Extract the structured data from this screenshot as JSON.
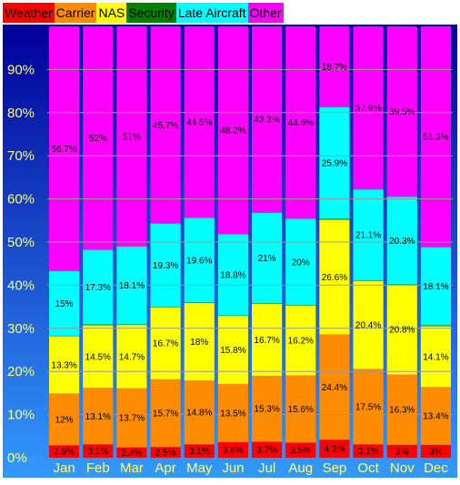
{
  "chart_data": {
    "type": "bar",
    "stacked": true,
    "normalized": true,
    "categories": [
      "Jan",
      "Feb",
      "Mar",
      "Apr",
      "May",
      "Jun",
      "Jul",
      "Aug",
      "Sep",
      "Oct",
      "Nov",
      "Dec"
    ],
    "y_tick_labels": [
      "0%",
      "10%",
      "20%",
      "30%",
      "40%",
      "50%",
      "60%",
      "70%",
      "80%",
      "90%"
    ],
    "ylim": [
      0,
      100
    ],
    "grid": true,
    "legend_position": "top-left",
    "series": [
      {
        "name": "Weather",
        "color": "#ff0000",
        "values": [
          2.9,
          3.1,
          2.4,
          2.5,
          3.1,
          3.6,
          3.7,
          3.5,
          4.2,
          3.1,
          3,
          3
        ],
        "labels": [
          "2.9%",
          "3.1%",
          "2.4%",
          "2.5%",
          "3.1%",
          "3.6%",
          "3.7%",
          "3.5%",
          "4.2%",
          "3.1%",
          "3%",
          "3%"
        ]
      },
      {
        "name": "Carrier",
        "color": "#ff8c00",
        "values": [
          12,
          13.1,
          13.7,
          15.7,
          14.8,
          13.5,
          15.3,
          15.6,
          24.4,
          17.5,
          16.3,
          13.4
        ],
        "labels": [
          "12%",
          "13.1%",
          "13.7%",
          "15.7%",
          "14.8%",
          "13.5%",
          "15.3%",
          "15.6%",
          "24.4%",
          "17.5%",
          "16.3%",
          "13.4%"
        ]
      },
      {
        "name": "NAS",
        "color": "#ffff00",
        "values": [
          13.3,
          14.5,
          14.7,
          16.7,
          18,
          15.8,
          16.7,
          16.2,
          26.6,
          20.4,
          20.8,
          14.1
        ],
        "labels": [
          "13.3%",
          "14.5%",
          "14.7%",
          "16.7%",
          "18%",
          "15.8%",
          "16.7%",
          "16.2%",
          "26.6%",
          "20.4%",
          "20.8%",
          "14.1%"
        ]
      },
      {
        "name": "Security",
        "color": "#008000",
        "values": [
          0.1,
          0.2,
          0.1,
          0.1,
          0.1,
          0.1,
          0.1,
          0.1,
          0.2,
          0.1,
          0.1,
          0.2
        ],
        "labels": [
          "",
          "",
          "",
          "",
          "",
          "",
          "",
          "",
          "",
          "",
          "",
          ""
        ]
      },
      {
        "name": "Late Aircraft",
        "color": "#00ffff",
        "values": [
          15,
          17.3,
          18.1,
          19.3,
          19.6,
          18.8,
          21,
          20,
          25.9,
          21.1,
          20.3,
          18.1
        ],
        "labels": [
          "15%",
          "17.3%",
          "18.1%",
          "19.3%",
          "19.6%",
          "18.8%",
          "21%",
          "20%",
          "25.9%",
          "21.1%",
          "20.3%",
          "18.1%"
        ]
      },
      {
        "name": "Other",
        "color": "#ff00ff",
        "values": [
          56.7,
          52,
          51,
          45.7,
          44.5,
          48.2,
          43.3,
          44.6,
          18.7,
          37.9,
          39.5,
          51.3
        ],
        "labels": [
          "56.7%",
          "52%",
          "51%",
          "45.7%",
          "44.5%",
          "48.2%",
          "43.3%",
          "44.6%",
          "18.7%",
          "37.9%",
          "39.5%",
          "51.3%"
        ]
      }
    ]
  },
  "colors": {
    "background_top": "#000099",
    "background_bottom": "#3399ff",
    "tick_label": "#ffff66",
    "gridline": "#9a9a9a"
  }
}
